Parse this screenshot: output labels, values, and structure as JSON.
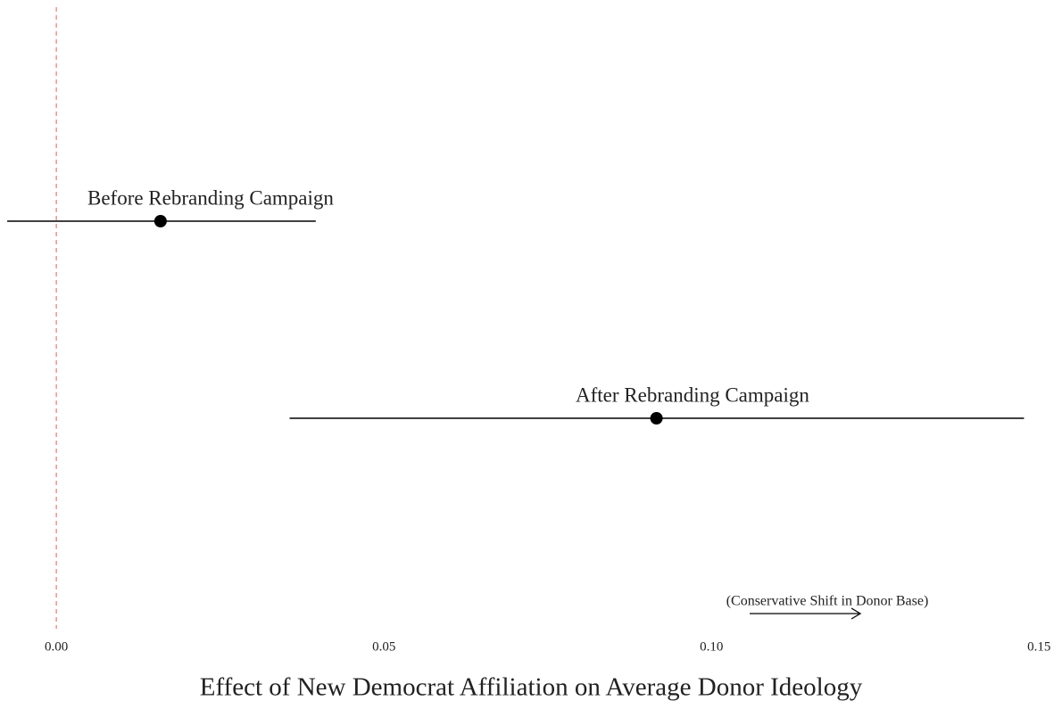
{
  "chart_data": {
    "type": "coefficient",
    "xlabel": "Effect of New Democrat Affiliation on Average Donor Ideology",
    "annotation": "(Conservative Shift in Donor Base)",
    "categories": [
      "Before Rebranding Campaign",
      "After Rebranding Campaign"
    ],
    "values": [
      0.0159,
      0.0916
    ],
    "lower": [
      -0.0075,
      0.0356
    ],
    "upper": [
      0.0396,
      0.1477
    ],
    "color": "#000000",
    "reference_line": 0,
    "reference_color": "#e8827a",
    "xlim": [
      -0.0086,
      0.1535
    ],
    "xticks": [
      {
        "value": 0,
        "label": "0.00"
      },
      {
        "value": 0.05,
        "label": "0.05"
      },
      {
        "value": 0.1,
        "label": "0.10"
      },
      {
        "value": 0.15,
        "label": "0.15"
      }
    ],
    "grid": false
  }
}
